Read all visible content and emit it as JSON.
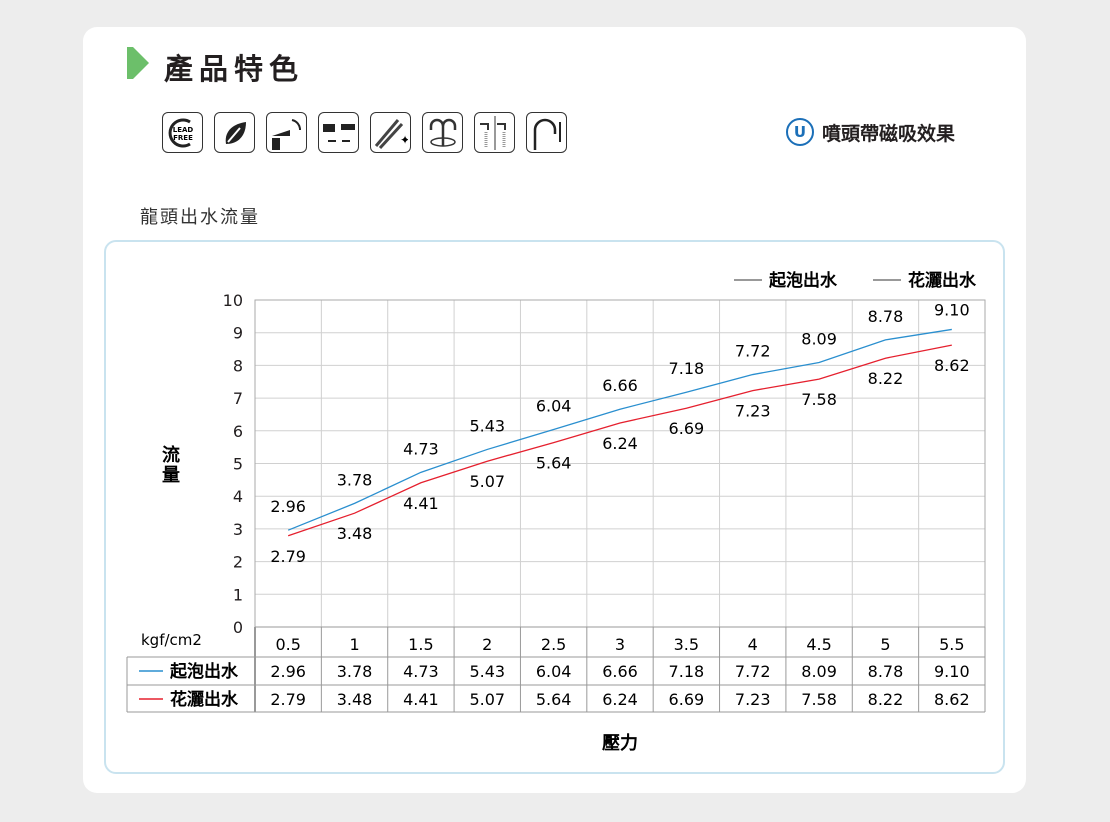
{
  "header": {
    "title": "產品特色",
    "feature_icons": [
      "lead-free-icon",
      "leaf-icon",
      "rotating-spout-icon",
      "extendable-hose-icon",
      "glossy-finish-icon",
      "swivel-spout-icon",
      "spray-modes-icon",
      "pull-out-height-icon"
    ],
    "magnet_label": "噴頭帶磁吸效果",
    "magnet_icon": "magnet-icon"
  },
  "section_title": "龍頭出水流量",
  "chart_data": {
    "type": "line",
    "title": "",
    "xlabel": "壓力",
    "ylabel": "流量",
    "x_unit": "kgf/cm2",
    "categories": [
      "0.5",
      "1",
      "1.5",
      "2",
      "2.5",
      "3",
      "3.5",
      "4",
      "4.5",
      "5",
      "5.5"
    ],
    "ylim": [
      0,
      10
    ],
    "yticks": [
      0,
      1,
      2,
      3,
      4,
      5,
      6,
      7,
      8,
      9,
      10
    ],
    "grid": true,
    "legend": "top-right",
    "series": [
      {
        "name": "起泡出水",
        "color": "#2a8fcf",
        "values": [
          2.96,
          3.78,
          4.73,
          5.43,
          6.04,
          6.66,
          7.18,
          7.72,
          8.09,
          8.78,
          9.1
        ],
        "labels": [
          "2.96",
          "3.78",
          "4.73",
          "5.43",
          "6.04",
          "6.66",
          "7.18",
          "7.72",
          "8.09",
          "8.78",
          "9.10"
        ]
      },
      {
        "name": "花灑出水",
        "color": "#e5202e",
        "values": [
          2.79,
          3.48,
          4.41,
          5.07,
          5.64,
          6.24,
          6.69,
          7.23,
          7.58,
          8.22,
          8.62
        ],
        "labels": [
          "2.79",
          "3.48",
          "4.41",
          "5.07",
          "5.64",
          "6.24",
          "6.69",
          "7.23",
          "7.58",
          "8.22",
          "8.62"
        ]
      }
    ]
  }
}
